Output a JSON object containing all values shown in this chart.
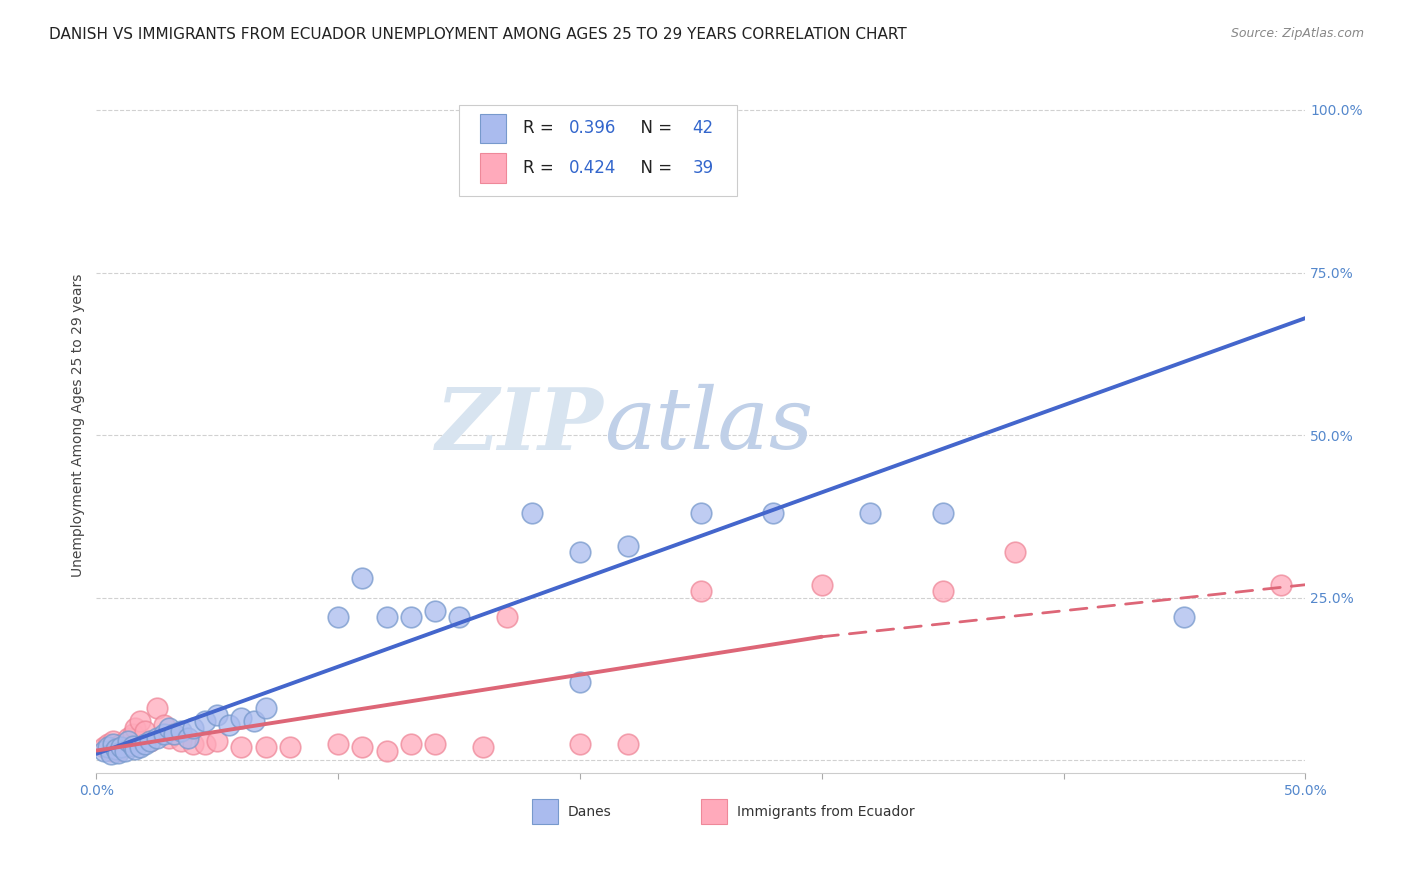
{
  "title": "DANISH VS IMMIGRANTS FROM ECUADOR UNEMPLOYMENT AMONG AGES 25 TO 29 YEARS CORRELATION CHART",
  "source": "Source: ZipAtlas.com",
  "ylabel": "Unemployment Among Ages 25 to 29 years",
  "xlim": [
    0,
    0.5
  ],
  "ylim": [
    -0.02,
    1.05
  ],
  "background_color": "#ffffff",
  "watermark_zip": "ZIP",
  "watermark_atlas": "atlas",
  "legend_R_blue": "0.396",
  "legend_N_blue": "42",
  "legend_R_pink": "0.424",
  "legend_N_pink": "39",
  "blue_fill": "#aabbee",
  "blue_edge": "#7799cc",
  "pink_fill": "#ffaabb",
  "pink_edge": "#ee8899",
  "blue_line_color": "#4466cc",
  "pink_line_color": "#dd6677",
  "blue_scatter": [
    [
      0.003,
      0.015
    ],
    [
      0.005,
      0.02
    ],
    [
      0.006,
      0.01
    ],
    [
      0.007,
      0.025
    ],
    [
      0.008,
      0.018
    ],
    [
      0.009,
      0.012
    ],
    [
      0.01,
      0.02
    ],
    [
      0.012,
      0.015
    ],
    [
      0.013,
      0.03
    ],
    [
      0.015,
      0.022
    ],
    [
      0.016,
      0.018
    ],
    [
      0.018,
      0.02
    ],
    [
      0.02,
      0.025
    ],
    [
      0.022,
      0.03
    ],
    [
      0.025,
      0.035
    ],
    [
      0.028,
      0.04
    ],
    [
      0.03,
      0.05
    ],
    [
      0.032,
      0.04
    ],
    [
      0.035,
      0.045
    ],
    [
      0.038,
      0.035
    ],
    [
      0.04,
      0.05
    ],
    [
      0.045,
      0.06
    ],
    [
      0.05,
      0.07
    ],
    [
      0.055,
      0.055
    ],
    [
      0.06,
      0.065
    ],
    [
      0.065,
      0.06
    ],
    [
      0.07,
      0.08
    ],
    [
      0.1,
      0.22
    ],
    [
      0.11,
      0.28
    ],
    [
      0.12,
      0.22
    ],
    [
      0.13,
      0.22
    ],
    [
      0.14,
      0.23
    ],
    [
      0.15,
      0.22
    ],
    [
      0.18,
      0.38
    ],
    [
      0.2,
      0.32
    ],
    [
      0.22,
      0.33
    ],
    [
      0.25,
      0.38
    ],
    [
      0.28,
      0.38
    ],
    [
      0.32,
      0.38
    ],
    [
      0.35,
      0.38
    ],
    [
      0.45,
      0.22
    ],
    [
      0.2,
      0.12
    ]
  ],
  "pink_scatter": [
    [
      0.003,
      0.02
    ],
    [
      0.005,
      0.025
    ],
    [
      0.006,
      0.015
    ],
    [
      0.007,
      0.03
    ],
    [
      0.008,
      0.02
    ],
    [
      0.009,
      0.015
    ],
    [
      0.01,
      0.025
    ],
    [
      0.012,
      0.02
    ],
    [
      0.013,
      0.035
    ],
    [
      0.015,
      0.04
    ],
    [
      0.016,
      0.05
    ],
    [
      0.018,
      0.06
    ],
    [
      0.02,
      0.045
    ],
    [
      0.022,
      0.03
    ],
    [
      0.025,
      0.08
    ],
    [
      0.028,
      0.055
    ],
    [
      0.03,
      0.035
    ],
    [
      0.032,
      0.04
    ],
    [
      0.035,
      0.03
    ],
    [
      0.04,
      0.025
    ],
    [
      0.045,
      0.025
    ],
    [
      0.05,
      0.03
    ],
    [
      0.06,
      0.02
    ],
    [
      0.07,
      0.02
    ],
    [
      0.1,
      0.025
    ],
    [
      0.11,
      0.02
    ],
    [
      0.12,
      0.015
    ],
    [
      0.13,
      0.025
    ],
    [
      0.14,
      0.025
    ],
    [
      0.17,
      0.22
    ],
    [
      0.2,
      0.025
    ],
    [
      0.22,
      0.025
    ],
    [
      0.25,
      0.26
    ],
    [
      0.3,
      0.27
    ],
    [
      0.35,
      0.26
    ],
    [
      0.38,
      0.32
    ],
    [
      0.49,
      0.27
    ],
    [
      0.16,
      0.02
    ],
    [
      0.08,
      0.02
    ]
  ],
  "blue_line": [
    [
      0.0,
      0.01
    ],
    [
      0.5,
      0.68
    ]
  ],
  "pink_line_solid": [
    [
      0.0,
      0.015
    ],
    [
      0.3,
      0.19
    ]
  ],
  "pink_line_dashed": [
    [
      0.3,
      0.19
    ],
    [
      0.5,
      0.27
    ]
  ],
  "title_fontsize": 11,
  "axis_label_fontsize": 10,
  "tick_fontsize": 10,
  "source_fontsize": 9
}
